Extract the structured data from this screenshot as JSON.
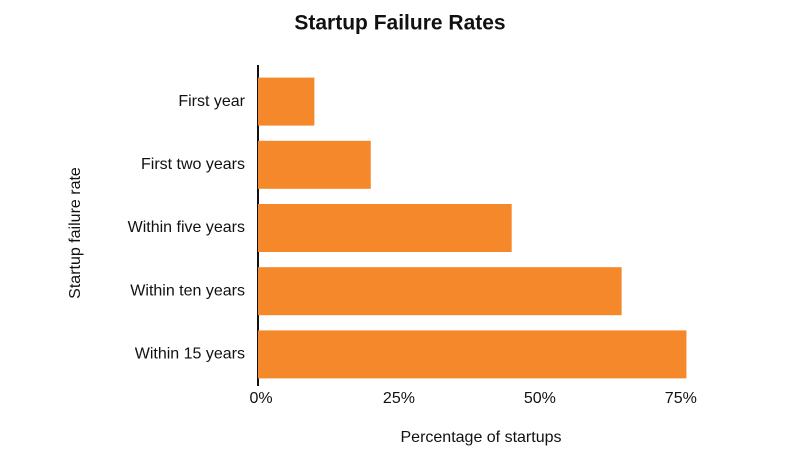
{
  "chart_data": {
    "type": "bar",
    "orientation": "horizontal",
    "title": "Startup Failure Rates",
    "x_label": "Percentage of startups",
    "y_label": "Startup failure rate",
    "categories": [
      "First year",
      "First two years",
      "Within five years",
      "Within ten years",
      "Within 15 years"
    ],
    "values": [
      10,
      20,
      45,
      64.5,
      76
    ],
    "color": "#f5882a",
    "xlim": [
      0,
      80
    ],
    "xticks": [
      {
        "value": 0,
        "label": "0%"
      },
      {
        "value": 25,
        "label": "25%"
      },
      {
        "value": 50,
        "label": "50%"
      },
      {
        "value": 75,
        "label": "75%"
      }
    ],
    "grid": false
  }
}
